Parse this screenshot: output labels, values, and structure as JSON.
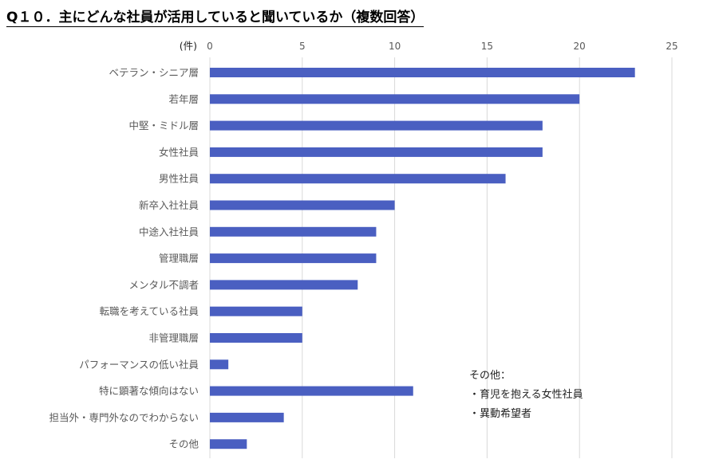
{
  "title": "Q１０．主にどんな社員が活用していると聞いているか（複数回答）",
  "chart_data": {
    "type": "bar",
    "orientation": "horizontal",
    "unit_label": "(件)",
    "xlim": [
      0,
      25
    ],
    "xticks": [
      0,
      5,
      10,
      15,
      20,
      25
    ],
    "grid": true,
    "bar_color": "#4a5fc1",
    "categories": [
      "ベテラン・シニア層",
      "若年層",
      "中堅・ミドル層",
      "女性社員",
      "男性社員",
      "新卒入社社員",
      "中途入社社員",
      "管理職層",
      "メンタル不調者",
      "転職を考えている社員",
      "非管理職層",
      "パフォーマンスの低い社員",
      "特に顕著な傾向はない",
      "担当外・専門外なのでわからない",
      "その他"
    ],
    "values": [
      23,
      20,
      18,
      18,
      16,
      10,
      9,
      9,
      8,
      5,
      5,
      1,
      11,
      4,
      2
    ]
  },
  "note": {
    "heading": "その他：",
    "items": [
      "・育児を抱える女性社員",
      "・異動希望者"
    ]
  }
}
